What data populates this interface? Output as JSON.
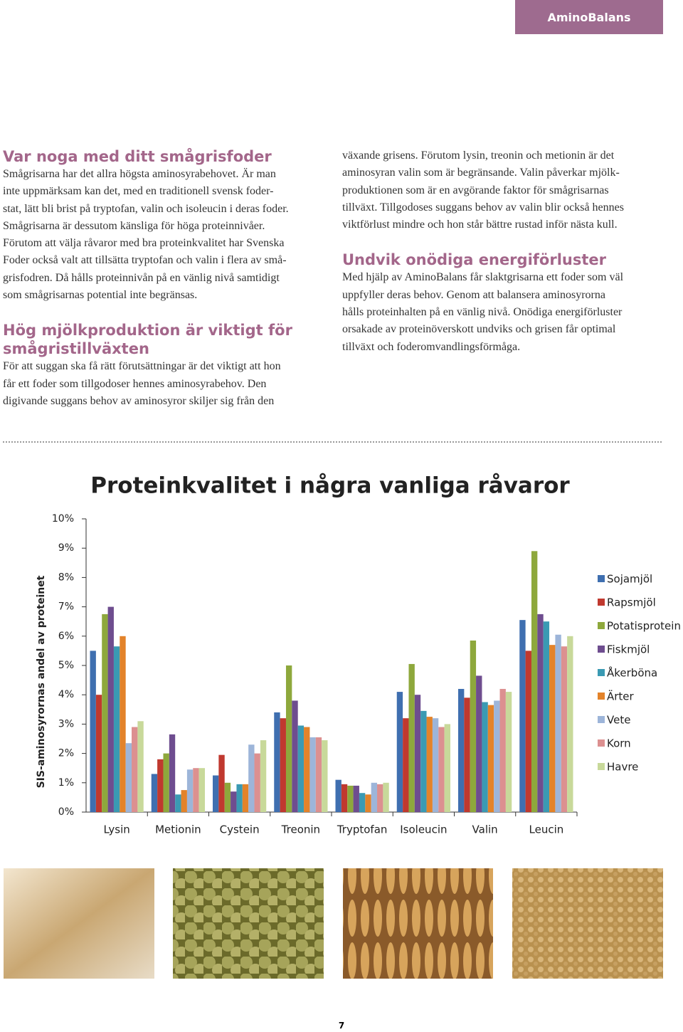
{
  "header": {
    "tab": "AminoBalans"
  },
  "left_column": [
    {
      "heading": [
        "Var noga med ditt smågrisfoder"
      ],
      "lines": [
        "Smågrisarna har det allra högsta aminosyrabehovet. Är man",
        "inte uppmärksam kan det, med en traditionell svensk foder-",
        "stat, lätt bli brist på tryptofan, valin och isoleucin i deras foder.",
        "Smågrisarna är dessutom känsliga för höga proteinnivåer.",
        "Förutom att välja råvaror med bra proteinkvalitet har Svenska",
        "Foder också valt att tillsätta tryptofan och valin i flera av små-",
        "grisfodren. Då hålls proteinnivån på en vänlig nivå samtidigt",
        "som smågrisarnas potential inte begränsas."
      ]
    },
    {
      "heading": [
        "Hög mjölkproduktion är viktigt för",
        "smågristillväxten"
      ],
      "lines": [
        "För att suggan ska få rätt förutsättningar är det viktigt att hon",
        "får ett foder som tillgodoser hennes aminosyrabehov. Den",
        "digivande suggans behov av aminosyror skiljer sig från den"
      ]
    }
  ],
  "right_column": [
    {
      "lines": [
        "växande grisens. Förutom lysin, treonin och metionin är det",
        "aminosyran valin som är begränsande. Valin påverkar mjölk-",
        "produktionen som är en avgörande faktor för smågrisarnas",
        "tillväxt. Tillgodoses suggans behov av valin blir också hennes",
        "viktförlust mindre och hon står bättre rustad inför nästa kull."
      ]
    },
    {
      "heading": [
        "Undvik onödiga energiförluster"
      ],
      "lines": [
        "Med hjälp av AminoBalans får slaktgrisarna ett foder som väl",
        "uppfyller deras behov. Genom att balansera aminosyrorna",
        "hålls proteinhalten på en vänlig nivå. Onödiga energiförluster",
        "orsakade av proteinöverskott undviks och grisen får optimal",
        "tillväxt och foderomvandlingsförmåga."
      ]
    }
  ],
  "chart_data": {
    "type": "bar",
    "title": "Proteinkvalitet i några vanliga råvaror",
    "y_label": "SIS-aminosyrornas andel av proteinet",
    "categories": [
      "Lysin",
      "Metionin",
      "Cystein",
      "Treonin",
      "Tryptofan",
      "Isoleucin",
      "Valin",
      "Leucin"
    ],
    "series": [
      {
        "name": "Sojamjöl",
        "color": "#3f6fb0",
        "values": [
          5.5,
          1.3,
          1.25,
          3.4,
          1.1,
          4.1,
          4.2,
          6.55
        ]
      },
      {
        "name": "Rapsmjöl",
        "color": "#c0392f",
        "values": [
          4.0,
          1.8,
          1.95,
          3.2,
          0.95,
          3.2,
          3.9,
          5.5
        ]
      },
      {
        "name": "Potatisprotein",
        "color": "#8ea83c",
        "values": [
          6.75,
          2.0,
          1.0,
          5.0,
          0.9,
          5.05,
          5.85,
          8.9
        ]
      },
      {
        "name": "Fiskmjöl",
        "color": "#6e4d8f",
        "values": [
          7.0,
          2.65,
          0.7,
          3.8,
          0.9,
          4.0,
          4.65,
          6.75
        ]
      },
      {
        "name": "Åkerböna",
        "color": "#3a9ab3",
        "values": [
          5.65,
          0.6,
          0.95,
          2.95,
          0.65,
          3.45,
          3.75,
          6.5
        ]
      },
      {
        "name": "Ärter",
        "color": "#e3832a",
        "values": [
          6.0,
          0.75,
          0.95,
          2.9,
          0.6,
          3.25,
          3.65,
          5.7
        ]
      },
      {
        "name": "Vete",
        "color": "#9db5d9",
        "values": [
          2.35,
          1.45,
          2.3,
          2.55,
          1.0,
          3.2,
          3.8,
          6.05
        ]
      },
      {
        "name": "Korn",
        "color": "#dc9090",
        "values": [
          2.9,
          1.5,
          2.0,
          2.55,
          0.95,
          2.9,
          4.2,
          5.65
        ]
      },
      {
        "name": "Havre",
        "color": "#c8d99a",
        "values": [
          3.1,
          1.5,
          2.45,
          2.45,
          1.0,
          3.0,
          4.1,
          6.0
        ]
      }
    ],
    "ylim": [
      0,
      10
    ],
    "yticks": [
      {
        "value": 0,
        "label": "0%"
      },
      {
        "value": 1,
        "label": "1%"
      },
      {
        "value": 2,
        "label": "2%"
      },
      {
        "value": 3,
        "label": "3%"
      },
      {
        "value": 4,
        "label": "4%"
      },
      {
        "value": 5,
        "label": "5%"
      },
      {
        "value": 6,
        "label": "6%"
      },
      {
        "value": 7,
        "label": "7%"
      },
      {
        "value": 8,
        "label": "8%"
      },
      {
        "value": 9,
        "label": "9%"
      },
      {
        "value": 10,
        "label": "10%"
      }
    ],
    "legend": "right"
  },
  "page_number": "7"
}
